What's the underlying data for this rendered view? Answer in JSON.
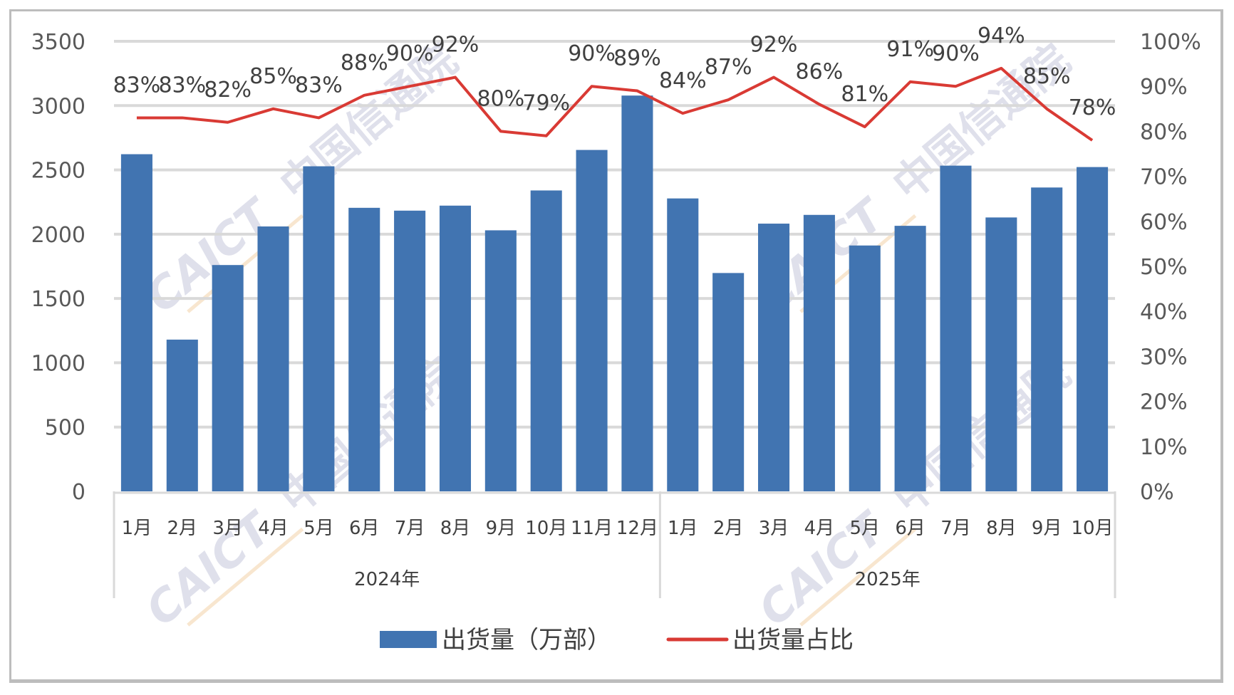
{
  "chart_data": {
    "type": "bar+line",
    "title": "",
    "categories": [
      "1月",
      "2月",
      "3月",
      "4月",
      "5月",
      "6月",
      "7月",
      "8月",
      "9月",
      "10月",
      "11月",
      "12月",
      "1月",
      "2月",
      "3月",
      "4月",
      "5月",
      "6月",
      "7月",
      "8月",
      "9月",
      "10月"
    ],
    "groups": [
      {
        "label": "2024年",
        "start": 0,
        "count": 12
      },
      {
        "label": "2025年",
        "start": 12,
        "count": 10
      }
    ],
    "series": [
      {
        "name": "出货量（万部）",
        "type": "bar",
        "axis": "left",
        "color": "#4174b1",
        "values": [
          2622,
          1180,
          1760,
          2060,
          2528,
          2205,
          2183,
          2222,
          2030,
          2340,
          2655,
          3078,
          2278,
          1698,
          2082,
          2150,
          1912,
          2065,
          2533,
          2130,
          2363,
          2522
        ]
      },
      {
        "name": "出货量占比",
        "type": "line",
        "axis": "right",
        "color": "#d93a34",
        "values": [
          83,
          83,
          82,
          85,
          83,
          88,
          90,
          92,
          80,
          79,
          90,
          89,
          84,
          87,
          92,
          86,
          81,
          91,
          90,
          94,
          85,
          78
        ],
        "labels": [
          "83%",
          "83%",
          "82%",
          "85%",
          "83%",
          "88%",
          "90%",
          "92%",
          "80%",
          "79%",
          "90%",
          "89%",
          "84%",
          "87%",
          "92%",
          "86%",
          "81%",
          "91%",
          "90%",
          "94%",
          "85%",
          "78%"
        ]
      }
    ],
    "left_axis": {
      "min": 0,
      "max": 3500,
      "ticks": [
        0,
        500,
        1000,
        1500,
        2000,
        2500,
        3000,
        3500
      ],
      "tick_labels": [
        "0",
        "500",
        "1000",
        "1500",
        "2000",
        "2500",
        "3000",
        "3500"
      ]
    },
    "right_axis": {
      "min": 0,
      "max": 100,
      "ticks": [
        0,
        10,
        20,
        30,
        40,
        50,
        60,
        70,
        80,
        90,
        100
      ],
      "tick_labels": [
        "0%",
        "10%",
        "20%",
        "30%",
        "40%",
        "50%",
        "60%",
        "70%",
        "80%",
        "90%",
        "100%"
      ]
    },
    "xlabel": "",
    "ylabel": "",
    "grid": true,
    "legend_position": "bottom",
    "watermark": "CAICT 中国信通院"
  },
  "legend": {
    "items": [
      {
        "label": "出货量（万部）",
        "color": "#4174b1",
        "shape": "box"
      },
      {
        "label": "出货量占比",
        "color": "#d93a34",
        "shape": "line"
      }
    ]
  },
  "watermark": {
    "text_en": "CAICT",
    "text_cn": "中国信通院"
  }
}
